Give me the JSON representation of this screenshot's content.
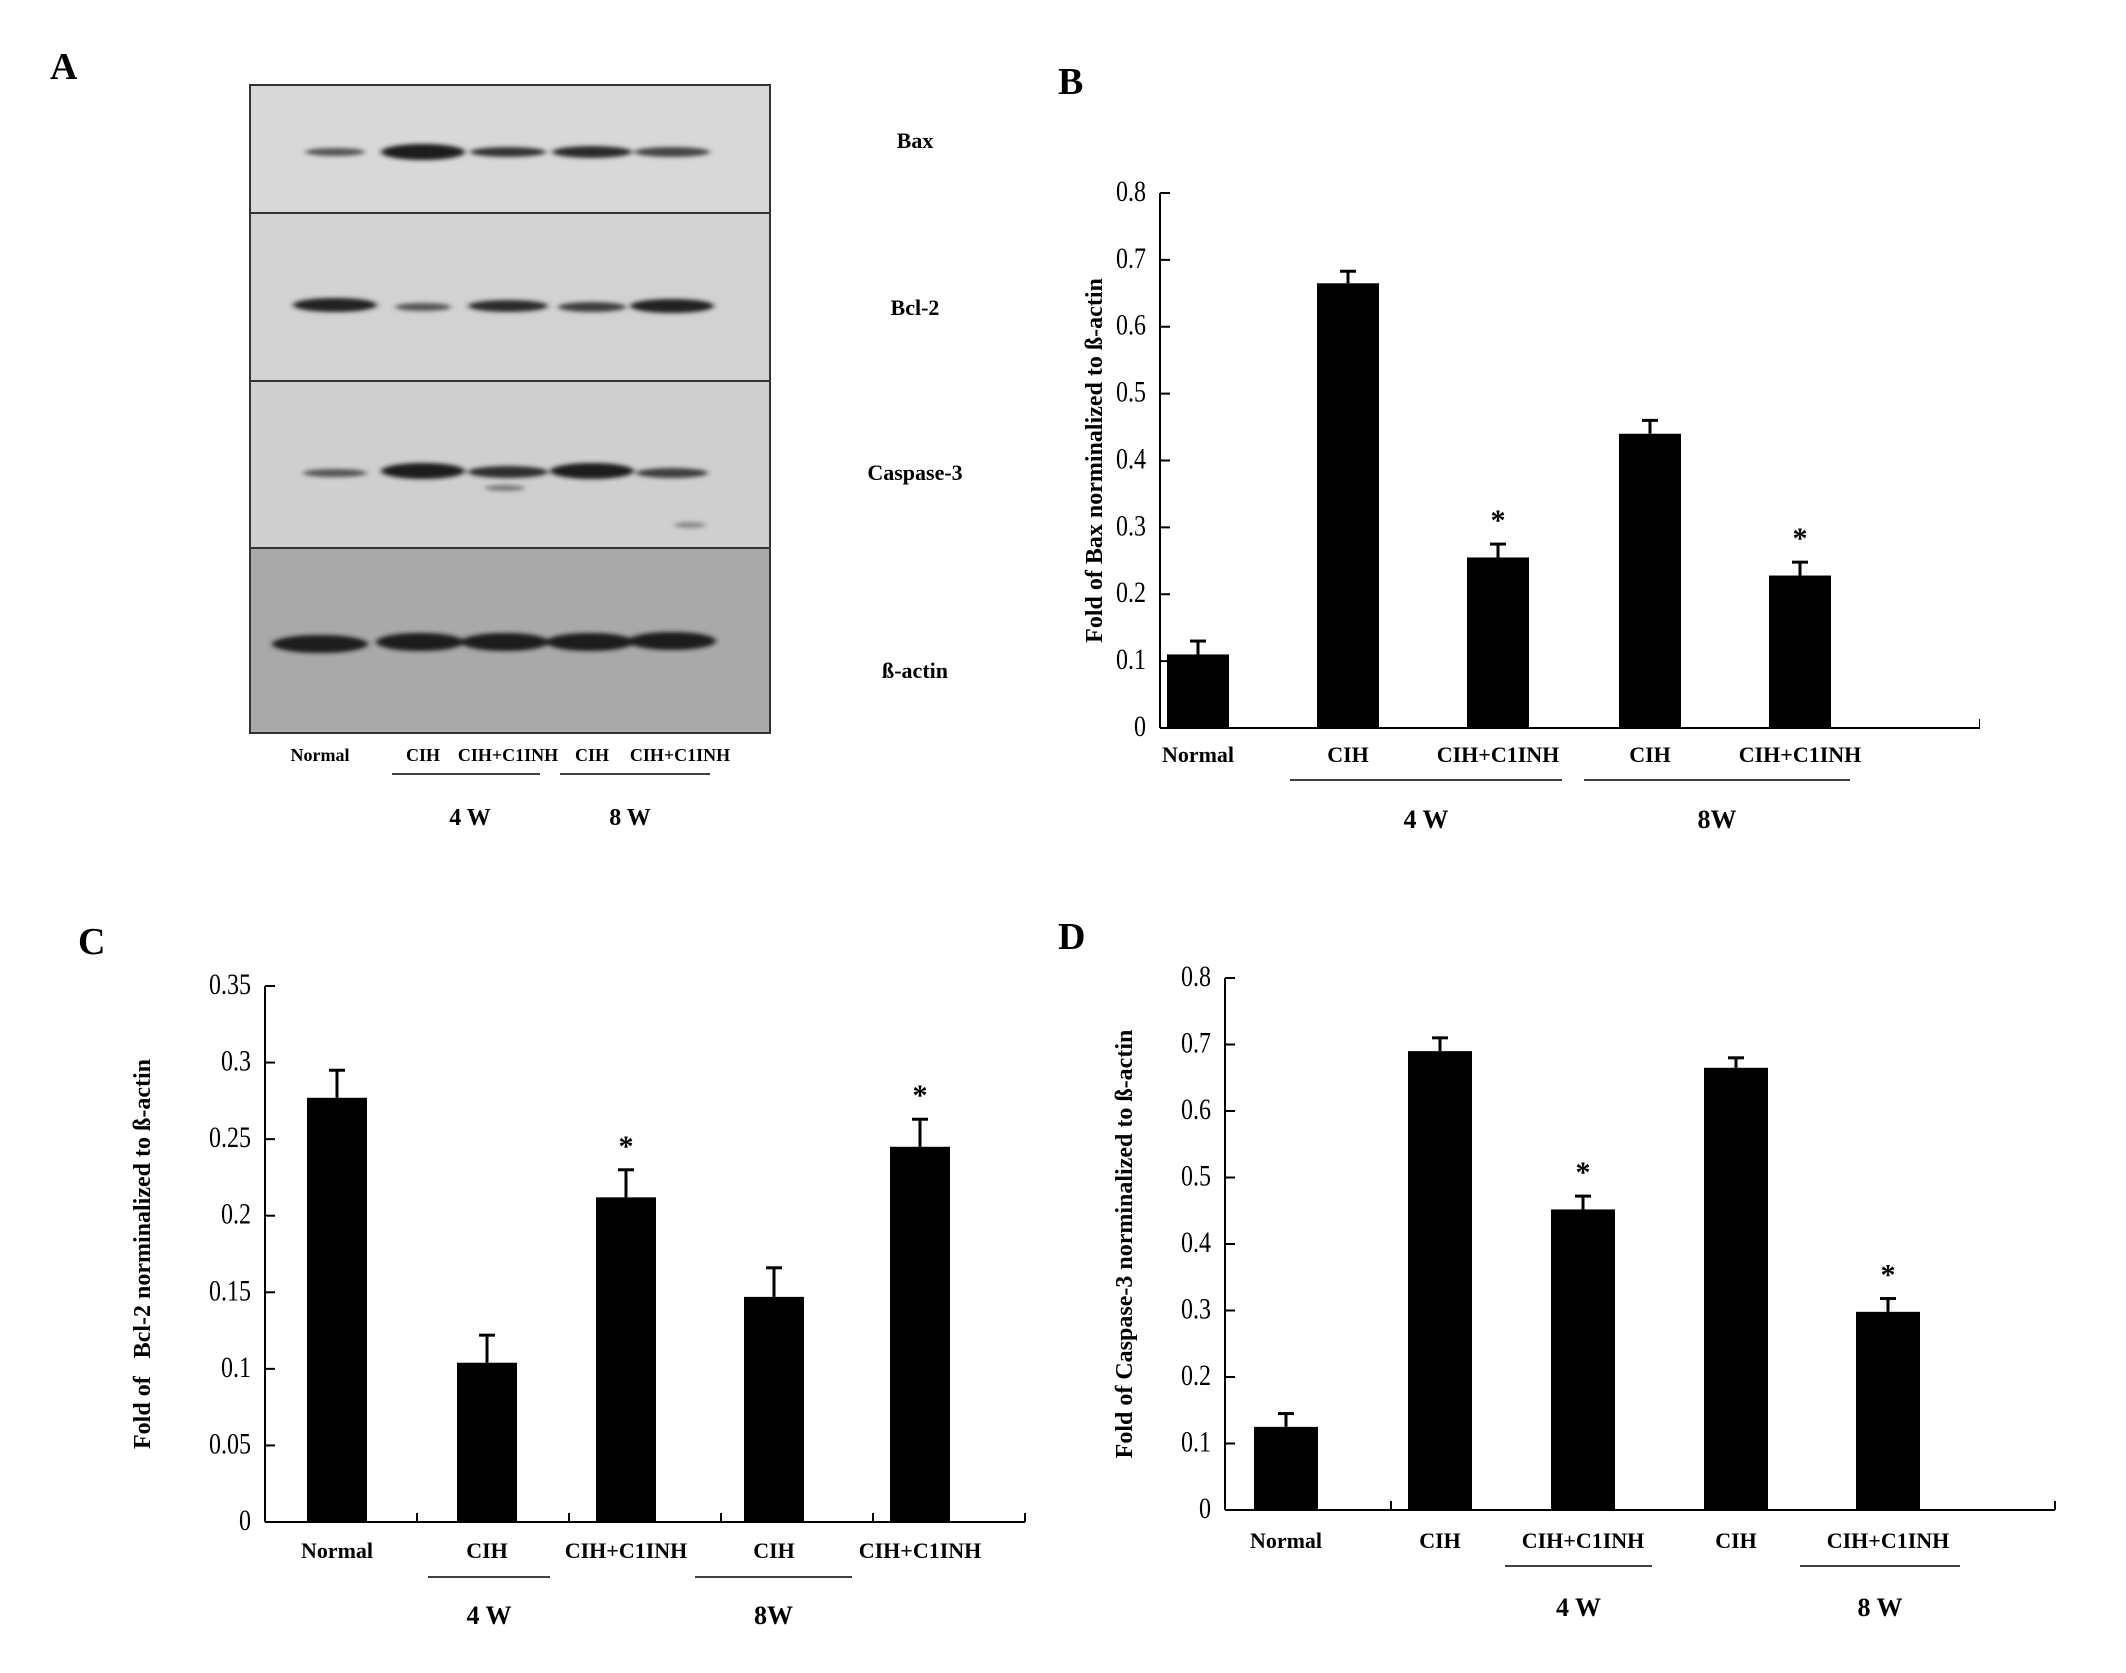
{
  "panels": {
    "a_letter": "A",
    "b_letter": "B",
    "c_letter": "C",
    "d_letter": "D"
  },
  "western_blot": {
    "proteins": [
      "Bax",
      "Bcl-2",
      "Caspase-3",
      "ß-actin"
    ],
    "lanes": [
      "Normal",
      "CIH",
      "CIH+C1INH",
      "CIH",
      "CIH+C1INH"
    ],
    "groups": [
      {
        "label": "4 W",
        "lanes": [
          1,
          2
        ]
      },
      {
        "label": "8 W",
        "lanes": [
          3,
          4
        ]
      }
    ]
  },
  "chart_data": [
    {
      "panel": "B",
      "type": "bar",
      "ylabel": "Fold of Bax norminalized to ß-actin",
      "ylim": [
        0,
        0.8
      ],
      "ytick_step": 0.1,
      "categories": [
        "Normal",
        "CIH",
        "CIH+C1INH",
        "CIH",
        "CIH+C1INH"
      ],
      "values": [
        0.11,
        0.665,
        0.255,
        0.44,
        0.228
      ],
      "errors": [
        0.02,
        0.018,
        0.02,
        0.02,
        0.02
      ],
      "annotations": [
        "",
        "",
        "*",
        "",
        "*"
      ],
      "groups": [
        {
          "label": "4 W",
          "categories": [
            1,
            2
          ]
        },
        {
          "label": "8W",
          "categories": [
            3,
            4
          ]
        }
      ]
    },
    {
      "panel": "C",
      "type": "bar",
      "ylabel": "Fold of   Bcl-2 norminalized to ß-actin",
      "ylim": [
        0,
        0.35
      ],
      "ytick_step": 0.05,
      "categories": [
        "Normal",
        "CIH",
        "CIH+C1INH",
        "CIH",
        "CIH+C1INH"
      ],
      "values": [
        0.277,
        0.104,
        0.212,
        0.147,
        0.245
      ],
      "errors": [
        0.018,
        0.018,
        0.018,
        0.019,
        0.018
      ],
      "annotations": [
        "",
        "",
        "*",
        "",
        "*"
      ],
      "groups": [
        {
          "label": "4 W",
          "categories": [
            1,
            2
          ]
        },
        {
          "label": "8W",
          "categories": [
            3,
            4
          ]
        }
      ]
    },
    {
      "panel": "D",
      "type": "bar",
      "ylabel": "Fold of Caspase-3 norminalized to ß-actin",
      "ylim": [
        0,
        0.8
      ],
      "ytick_step": 0.1,
      "categories": [
        "Normal",
        "CIH",
        "CIH+C1INH",
        "CIH",
        "CIH+C1INH"
      ],
      "values": [
        0.125,
        0.69,
        0.452,
        0.665,
        0.298
      ],
      "errors": [
        0.02,
        0.02,
        0.02,
        0.015,
        0.02
      ],
      "annotations": [
        "",
        "",
        "*",
        "",
        "*"
      ],
      "groups": [
        {
          "label": "4 W",
          "categories": [
            1,
            2
          ]
        },
        {
          "label": "8 W",
          "categories": [
            3,
            4
          ]
        }
      ]
    }
  ]
}
